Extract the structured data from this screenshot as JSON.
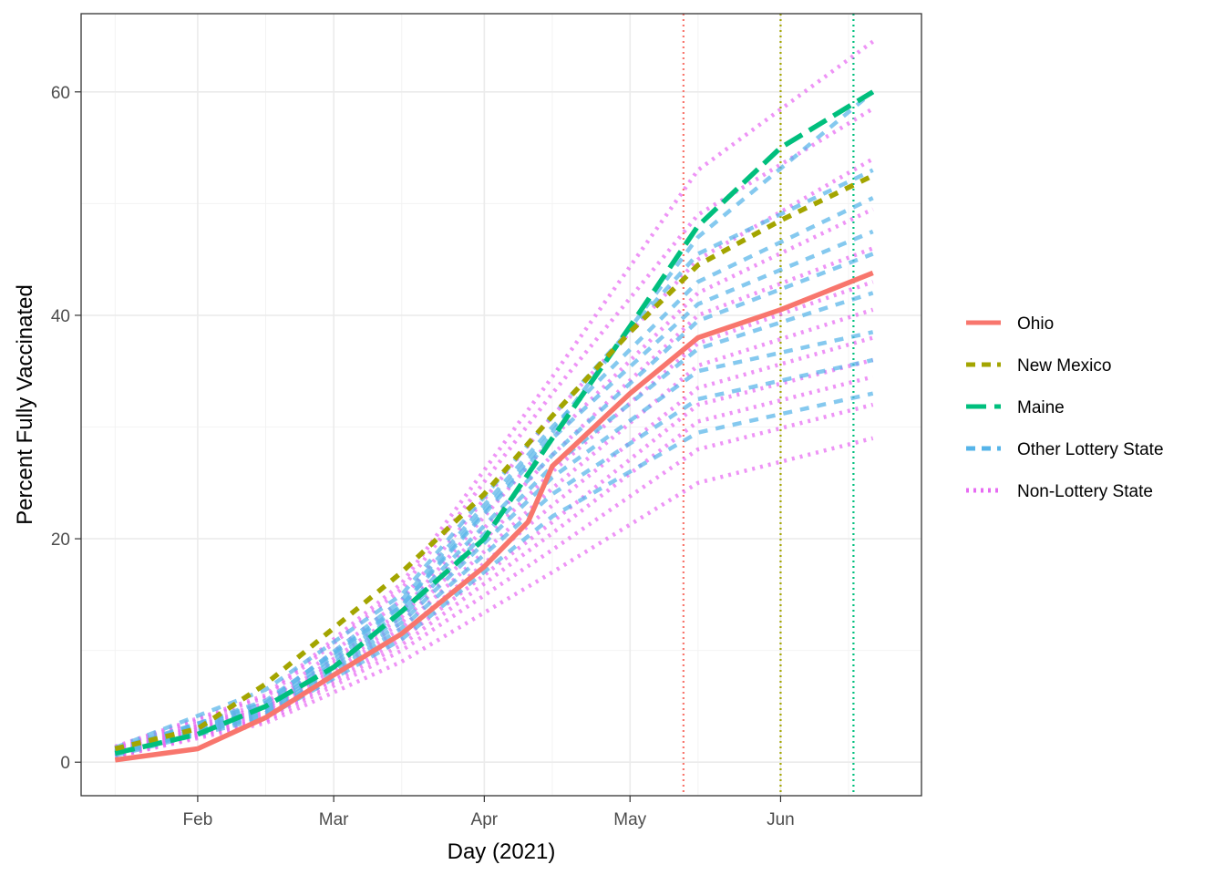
{
  "chart_data": {
    "type": "line",
    "xlabel": "Day (2021)",
    "ylabel": "Percent Fully Vaccinated",
    "x_ticks": [
      {
        "date": "2021-02-01",
        "label": "Feb"
      },
      {
        "date": "2021-03-01",
        "label": "Mar"
      },
      {
        "date": "2021-04-01",
        "label": "Apr"
      },
      {
        "date": "2021-05-01",
        "label": "May"
      },
      {
        "date": "2021-06-01",
        "label": "Jun"
      }
    ],
    "x_range": [
      "2021-01-08",
      "2021-06-30"
    ],
    "y_ticks": [
      0,
      20,
      40,
      60
    ],
    "ylim": [
      -3,
      67
    ],
    "grid": true,
    "legend_position": "right",
    "vertical_lines": [
      {
        "date": "2021-05-12",
        "color": "#F8766D",
        "style": "dotted"
      },
      {
        "date": "2021-06-01",
        "color": "#A3A500",
        "style": "dotted"
      },
      {
        "date": "2021-06-16",
        "color": "#00BF7D",
        "style": "dotted"
      }
    ],
    "series": [
      {
        "name": "Ohio",
        "color": "#F8766D",
        "style": "solid",
        "x": [
          "2021-01-15",
          "2021-02-01",
          "2021-02-15",
          "2021-03-01",
          "2021-03-15",
          "2021-04-01",
          "2021-04-10",
          "2021-04-15",
          "2021-05-01",
          "2021-05-15",
          "2021-06-01",
          "2021-06-20"
        ],
        "y": [
          0.2,
          1.2,
          4.0,
          7.8,
          11.5,
          17.5,
          21.5,
          26.5,
          33.0,
          38.0,
          40.5,
          43.8
        ]
      },
      {
        "name": "New Mexico",
        "color": "#A3A500",
        "style": "dashed",
        "x": [
          "2021-01-15",
          "2021-02-01",
          "2021-02-15",
          "2021-03-01",
          "2021-03-15",
          "2021-04-01",
          "2021-04-15",
          "2021-05-01",
          "2021-05-15",
          "2021-06-01",
          "2021-06-20"
        ],
        "y": [
          1.2,
          3.0,
          7.0,
          12.0,
          17.0,
          24.0,
          31.0,
          38.5,
          44.5,
          48.5,
          52.5
        ]
      },
      {
        "name": "Maine",
        "color": "#00BF7D",
        "style": "longdash",
        "x": [
          "2021-01-15",
          "2021-02-01",
          "2021-02-15",
          "2021-03-01",
          "2021-03-15",
          "2021-04-01",
          "2021-04-15",
          "2021-05-01",
          "2021-05-15",
          "2021-06-01",
          "2021-06-20"
        ],
        "y": [
          0.8,
          2.5,
          5.0,
          8.5,
          13.5,
          20.0,
          29.0,
          39.0,
          48.0,
          55.0,
          60.0
        ]
      }
    ],
    "group_series": [
      {
        "name": "Other Lottery State",
        "color": "#56B4E9",
        "style": "dashed",
        "x": [
          "2021-01-15",
          "2021-02-15",
          "2021-03-15",
          "2021-04-15",
          "2021-05-15",
          "2021-06-20"
        ],
        "lines": [
          [
            0.6,
            4.0,
            11.0,
            22.0,
            29.5,
            33.0
          ],
          [
            0.7,
            4.2,
            12.0,
            24.0,
            32.5,
            36.0
          ],
          [
            0.8,
            4.4,
            12.5,
            25.5,
            35.0,
            38.5
          ],
          [
            0.9,
            4.6,
            13.0,
            26.5,
            37.0,
            42.0
          ],
          [
            1.0,
            4.8,
            13.5,
            27.5,
            39.5,
            45.5
          ],
          [
            1.1,
            5.0,
            14.0,
            29.0,
            41.0,
            47.5
          ],
          [
            1.2,
            5.3,
            14.5,
            30.0,
            43.0,
            50.5
          ],
          [
            1.3,
            6.5,
            15.0,
            31.0,
            45.5,
            53.0
          ],
          [
            1.0,
            5.5,
            14.0,
            29.5,
            47.0,
            60.0
          ]
        ]
      },
      {
        "name": "Non-Lottery State",
        "color": "#E76BF3",
        "style": "dotted",
        "x": [
          "2021-01-15",
          "2021-02-15",
          "2021-03-15",
          "2021-04-15",
          "2021-05-15",
          "2021-06-20"
        ],
        "lines": [
          [
            0.5,
            3.5,
            9.0,
            17.0,
            25.0,
            29.0
          ],
          [
            0.5,
            3.7,
            10.0,
            19.0,
            28.0,
            32.0
          ],
          [
            0.6,
            3.9,
            10.5,
            20.5,
            30.5,
            34.5
          ],
          [
            0.6,
            4.0,
            11.0,
            21.5,
            32.0,
            36.0
          ],
          [
            0.7,
            4.2,
            11.5,
            23.0,
            33.5,
            38.0
          ],
          [
            0.8,
            4.4,
            12.0,
            24.5,
            35.5,
            40.5
          ],
          [
            0.9,
            4.6,
            12.5,
            26.0,
            37.5,
            43.0
          ],
          [
            1.0,
            4.8,
            13.0,
            27.5,
            40.0,
            46.0
          ],
          [
            1.1,
            5.0,
            13.5,
            29.0,
            42.0,
            49.5
          ],
          [
            1.2,
            5.3,
            14.5,
            31.0,
            45.0,
            54.0
          ],
          [
            1.3,
            5.8,
            15.5,
            33.0,
            49.0,
            58.5
          ],
          [
            1.4,
            6.0,
            16.0,
            34.5,
            53.0,
            64.5
          ]
        ]
      }
    ],
    "legend": [
      {
        "label": "Ohio",
        "color": "#F8766D",
        "style": "solid"
      },
      {
        "label": "New Mexico",
        "color": "#A3A500",
        "style": "dashed"
      },
      {
        "label": "Maine",
        "color": "#00BF7D",
        "style": "longdash"
      },
      {
        "label": "Other Lottery State",
        "color": "#56B4E9",
        "style": "dashed"
      },
      {
        "label": "Non-Lottery State",
        "color": "#E76BF3",
        "style": "dotted"
      }
    ]
  }
}
